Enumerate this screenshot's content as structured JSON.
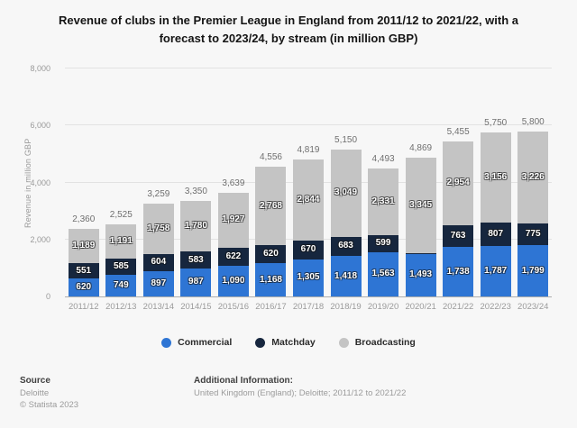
{
  "title": "Revenue of clubs in the Premier League in England from 2011/12 to 2021/22, with a forecast to 2023/24, by stream (in million GBP)",
  "y_axis": {
    "label": "Revenue in million GBP",
    "ticks": [
      {
        "value": 0,
        "label": "0"
      },
      {
        "value": 2000,
        "label": "2,000"
      },
      {
        "value": 4000,
        "label": "4,000"
      },
      {
        "value": 6000,
        "label": "6,000"
      },
      {
        "value": 8000,
        "label": "8,000"
      }
    ]
  },
  "chart_data": {
    "type": "bar",
    "stacked": true,
    "title": "Revenue of clubs in the Premier League in England from 2011/12 to 2021/22, with a forecast to 2023/24, by stream (in million GBP)",
    "xlabel": "",
    "ylabel": "Revenue in million GBP",
    "ylim": [
      0,
      8000
    ],
    "grid": true,
    "legend_position": "bottom",
    "categories": [
      "2011/12",
      "2012/13",
      "2013/14",
      "2014/15",
      "2015/16",
      "2016/17",
      "2017/18",
      "2018/19",
      "2019/20",
      "2020/21",
      "2021/22",
      "2022/23",
      "2023/24"
    ],
    "series": [
      {
        "name": "Commercial",
        "color": "#2e75d4",
        "values": [
          620,
          749,
          897,
          987,
          1090,
          1168,
          1305,
          1418,
          1563,
          1493,
          1738,
          1787,
          1799
        ]
      },
      {
        "name": "Matchday",
        "color": "#16263e",
        "values": [
          551,
          585,
          604,
          583,
          622,
          620,
          670,
          683,
          599,
          31,
          763,
          807,
          775
        ]
      },
      {
        "name": "Broadcasting",
        "color": "#c4c4c4",
        "values": [
          1189,
          1191,
          1758,
          1780,
          1927,
          2768,
          2844,
          3049,
          2331,
          3345,
          2954,
          3156,
          3226
        ]
      }
    ],
    "totals": [
      2360,
      2525,
      3259,
      3350,
      3639,
      4556,
      4819,
      5150,
      4493,
      4869,
      5455,
      5750,
      5800
    ]
  },
  "footer": {
    "source_heading": "Source",
    "source_line1": "Deloitte",
    "source_line2": "© Statista 2023",
    "additional_heading": "Additional Information:",
    "additional_text": "United Kingdom (England); Deloitte; 2011/12 to 2021/22"
  }
}
